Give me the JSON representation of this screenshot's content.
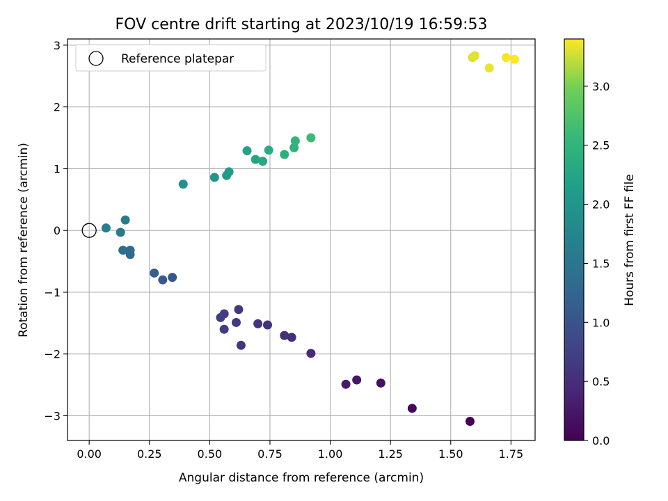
{
  "chart_data": {
    "type": "scatter",
    "title": "FOV centre drift starting at 2023/10/19 16:59:53",
    "xlabel": "Angular distance from reference (arcmin)",
    "ylabel": "Rotation from reference (arcmin)",
    "xlim": [
      -0.09,
      1.85
    ],
    "ylim": [
      -3.4,
      3.1
    ],
    "xticks": [
      0.0,
      0.25,
      0.5,
      0.75,
      1.0,
      1.25,
      1.5,
      1.75
    ],
    "xtick_labels": [
      "0.00",
      "0.25",
      "0.50",
      "0.75",
      "1.00",
      "1.25",
      "1.50",
      "1.75"
    ],
    "yticks": [
      -3,
      -2,
      -1,
      0,
      1,
      2,
      3
    ],
    "ytick_labels": [
      "−3",
      "−2",
      "−1",
      "0",
      "1",
      "2",
      "3"
    ],
    "grid": true,
    "legend": {
      "position": "top-left",
      "entries": [
        {
          "label": "Reference platepar",
          "marker": "open-circle",
          "x": 0.0,
          "y": 0.0
        }
      ]
    },
    "colorbar": {
      "label": "Hours from first FF file",
      "colormap": "viridis",
      "range": [
        0.0,
        3.4
      ],
      "ticks": [
        0.0,
        0.5,
        1.0,
        1.5,
        2.0,
        2.5,
        3.0
      ],
      "tick_labels": [
        "0.0",
        "0.5",
        "1.0",
        "1.5",
        "2.0",
        "2.5",
        "3.0"
      ]
    },
    "points": [
      {
        "x": 1.58,
        "y": -3.09,
        "c": 0.0
      },
      {
        "x": 1.34,
        "y": -2.88,
        "c": 0.08
      },
      {
        "x": 1.21,
        "y": -2.47,
        "c": 0.16
      },
      {
        "x": 1.11,
        "y": -2.42,
        "c": 0.22
      },
      {
        "x": 1.065,
        "y": -2.49,
        "c": 0.27
      },
      {
        "x": 0.92,
        "y": -1.99,
        "c": 0.45
      },
      {
        "x": 0.84,
        "y": -1.73,
        "c": 0.5
      },
      {
        "x": 0.81,
        "y": -1.7,
        "c": 0.52
      },
      {
        "x": 0.74,
        "y": -1.53,
        "c": 0.56
      },
      {
        "x": 0.7,
        "y": -1.51,
        "c": 0.58
      },
      {
        "x": 0.63,
        "y": -1.86,
        "c": 0.6
      },
      {
        "x": 0.62,
        "y": -1.28,
        "c": 0.62
      },
      {
        "x": 0.61,
        "y": -1.49,
        "c": 0.65
      },
      {
        "x": 0.56,
        "y": -1.35,
        "c": 0.68
      },
      {
        "x": 0.56,
        "y": -1.6,
        "c": 0.7
      },
      {
        "x": 0.545,
        "y": -1.41,
        "c": 0.72
      },
      {
        "x": 0.345,
        "y": -0.76,
        "c": 1.05
      },
      {
        "x": 0.305,
        "y": -0.8,
        "c": 1.1
      },
      {
        "x": 0.27,
        "y": -0.69,
        "c": 1.15
      },
      {
        "x": 0.17,
        "y": -0.39,
        "c": 1.3
      },
      {
        "x": 0.17,
        "y": -0.32,
        "c": 1.32
      },
      {
        "x": 0.14,
        "y": -0.32,
        "c": 1.35
      },
      {
        "x": 0.13,
        "y": -0.03,
        "c": 1.55
      },
      {
        "x": 0.15,
        "y": 0.17,
        "c": 1.6
      },
      {
        "x": 0.07,
        "y": 0.04,
        "c": 1.65
      },
      {
        "x": 0.39,
        "y": 0.75,
        "c": 1.95
      },
      {
        "x": 0.52,
        "y": 0.86,
        "c": 2.0
      },
      {
        "x": 0.57,
        "y": 0.89,
        "c": 2.05
      },
      {
        "x": 0.58,
        "y": 0.95,
        "c": 2.1
      },
      {
        "x": 0.655,
        "y": 1.29,
        "c": 2.2
      },
      {
        "x": 0.69,
        "y": 1.15,
        "c": 2.25
      },
      {
        "x": 0.72,
        "y": 1.12,
        "c": 2.3
      },
      {
        "x": 0.745,
        "y": 1.3,
        "c": 2.35
      },
      {
        "x": 0.81,
        "y": 1.23,
        "c": 2.4
      },
      {
        "x": 0.85,
        "y": 1.34,
        "c": 2.45
      },
      {
        "x": 0.855,
        "y": 1.45,
        "c": 2.5
      },
      {
        "x": 0.92,
        "y": 1.5,
        "c": 2.6
      },
      {
        "x": 1.59,
        "y": 2.8,
        "c": 3.3
      },
      {
        "x": 1.6,
        "y": 2.83,
        "c": 3.32
      },
      {
        "x": 1.66,
        "y": 2.63,
        "c": 3.35
      },
      {
        "x": 1.73,
        "y": 2.8,
        "c": 3.38
      },
      {
        "x": 1.765,
        "y": 2.77,
        "c": 3.4
      }
    ]
  }
}
